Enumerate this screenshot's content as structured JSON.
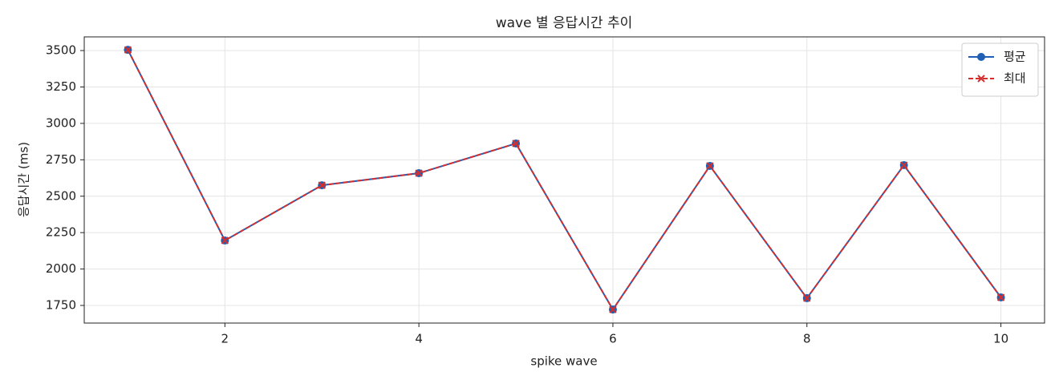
{
  "chart_data": {
    "type": "line",
    "title": "wave 별 응답시간 추이",
    "x_label": "spike wave",
    "y_label": "응답시간 (ms)",
    "x": [
      1,
      2,
      3,
      4,
      5,
      6,
      7,
      8,
      9,
      10
    ],
    "series": [
      {
        "name": "평균",
        "color": "#1f5fb4",
        "marker": "o",
        "linestyle": "solid",
        "values": [
          3505,
          2196,
          2575,
          2658,
          2862,
          1722,
          2708,
          1800,
          2713,
          1805
        ]
      },
      {
        "name": "최대",
        "color": "#d32f2f",
        "marker": "x",
        "linestyle": "dashed",
        "values": [
          3505,
          2196,
          2575,
          2658,
          2862,
          1722,
          2708,
          1800,
          2713,
          1805
        ]
      }
    ],
    "xlim": [
      0.55,
      10.45
    ],
    "xticks": [
      2,
      4,
      6,
      8,
      10
    ],
    "ylim": [
      1629,
      3594
    ],
    "yticks": [
      1750,
      2000,
      2250,
      2500,
      2750,
      3000,
      3250,
      3500
    ],
    "grid": true,
    "legend": "upper right"
  }
}
